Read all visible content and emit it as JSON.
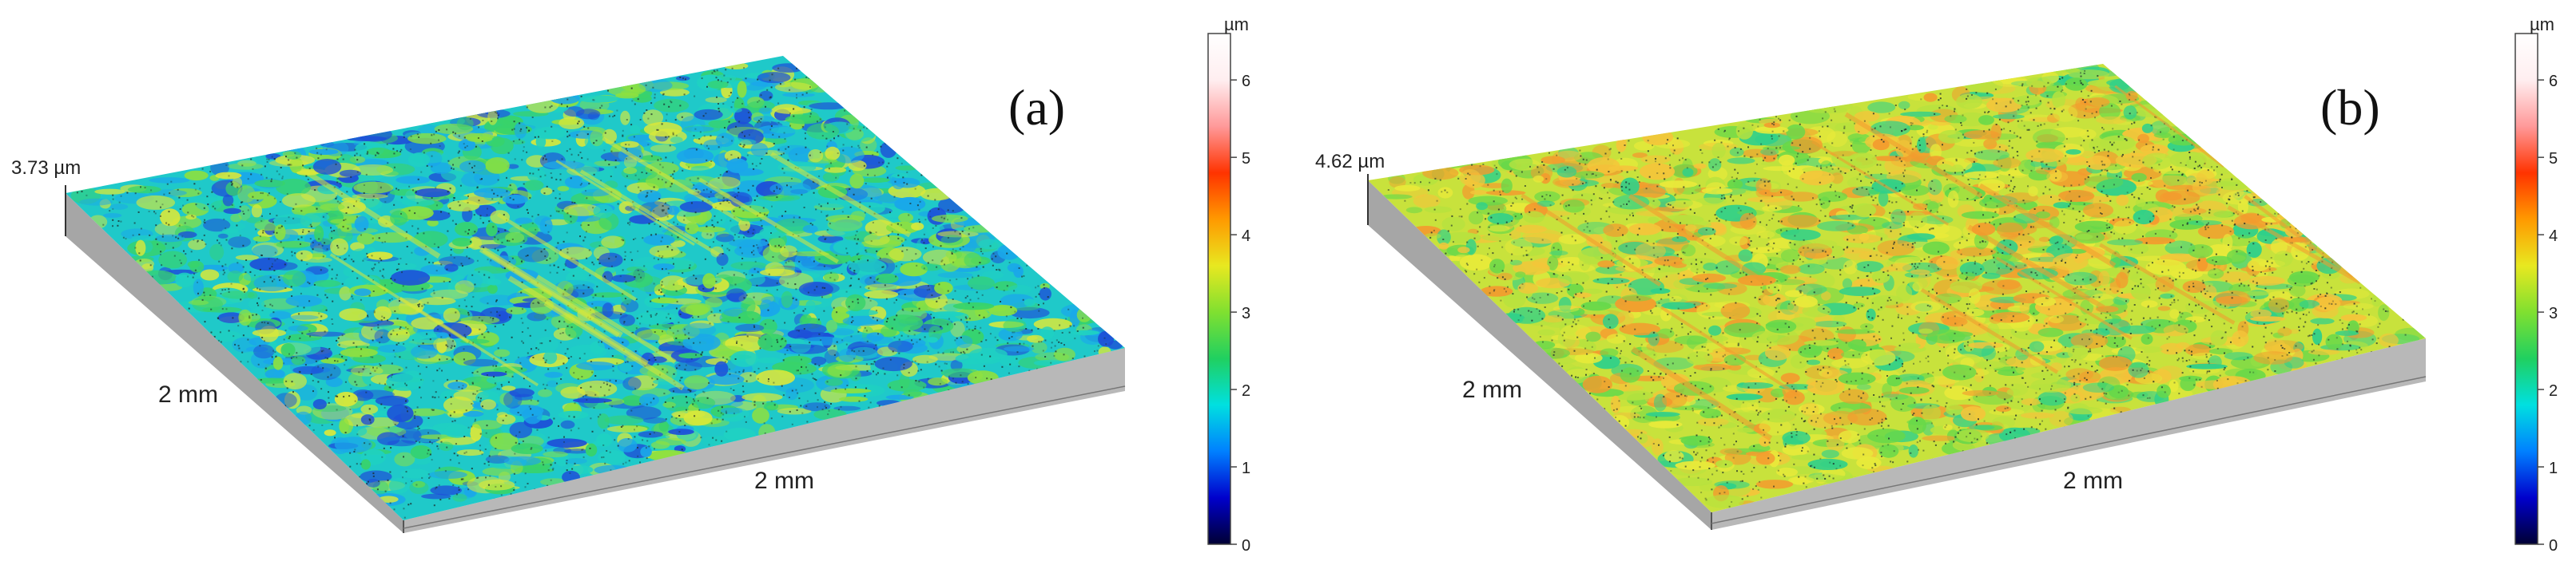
{
  "panels": [
    {
      "id": "a",
      "label": "(a)",
      "height_label": "3.73 µm",
      "left_dimension_label": "2 mm",
      "right_dimension_label": "2 mm",
      "surface_colors": [
        "#1d4fd8",
        "#1aa7ea",
        "#1fd1c2",
        "#38d36a",
        "#8de040",
        "#d9e83a"
      ],
      "colorbar": {
        "unit": "µm",
        "ticks": [
          "0",
          "1",
          "2",
          "3",
          "4",
          "5",
          "6"
        ]
      }
    },
    {
      "id": "b",
      "label": "(b)",
      "height_label": "4.62 µm",
      "left_dimension_label": "2 mm",
      "right_dimension_label": "2 mm",
      "surface_colors": [
        "#2fd08a",
        "#66d84a",
        "#b7e23e",
        "#e8ea3a",
        "#f4c53a",
        "#f39b2e"
      ],
      "colorbar": {
        "unit": "µm",
        "ticks": [
          "0",
          "1",
          "2",
          "3",
          "4",
          "5",
          "6"
        ]
      }
    }
  ],
  "colorbar_colors": [
    "#000033",
    "#0000cc",
    "#0080ff",
    "#00e0e0",
    "#20d060",
    "#80e030",
    "#e8e820",
    "#ff9900",
    "#ff3300",
    "#ff9999",
    "#ffeef0",
    "#ffffff"
  ]
}
